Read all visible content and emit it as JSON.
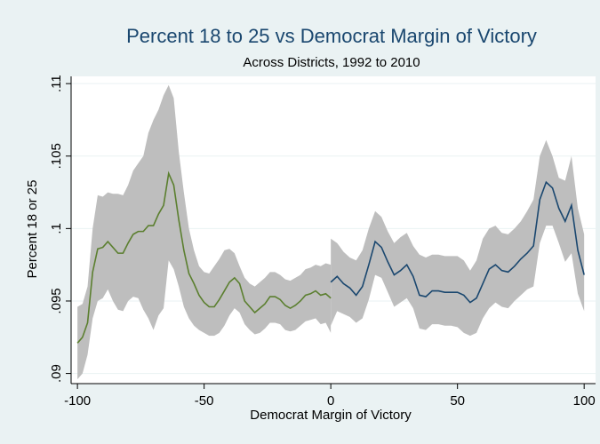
{
  "chart_data": {
    "type": "line",
    "title": "Percent 18 to 25 vs Democrat Margin of Victory",
    "subtitle": "Across Districts, 1992 to 2010",
    "x_label": "Democrat Margin of Victory",
    "y_label": "Percent 18 or 25",
    "xlim": [
      -102.5,
      104.5
    ],
    "ylim": [
      0.0893,
      0.1105
    ],
    "xticks": [
      -100,
      -50,
      0,
      50,
      100
    ],
    "yticks": [
      {
        "value": 0.09,
        "label": ".09"
      },
      {
        "value": 0.095,
        "label": ".095"
      },
      {
        "value": 0.1,
        "label": ".1"
      },
      {
        "value": 0.105,
        "label": ".105"
      },
      {
        "value": 0.11,
        "label": ".11"
      }
    ],
    "grid": true,
    "band_color": "#bebebe",
    "series": [
      {
        "color": "#5b7f2f",
        "x": [
          -100,
          -98,
          -96,
          -94,
          -92,
          -90,
          -88,
          -86,
          -84,
          -82,
          -80,
          -78,
          -76,
          -74,
          -72,
          -70,
          -68,
          -66,
          -64,
          -62,
          -60,
          -58,
          -56,
          -54,
          -52,
          -50,
          -48,
          -46,
          -44,
          -42,
          -40,
          -38,
          -36,
          -34,
          -32,
          -30,
          -28,
          -26,
          -24,
          -22,
          -20,
          -18,
          -16,
          -14,
          -12,
          -10,
          -8,
          -6,
          -4,
          -2,
          0
        ],
        "values": [
          0.0921,
          0.0925,
          0.0935,
          0.097,
          0.0986,
          0.0987,
          0.0991,
          0.0987,
          0.0983,
          0.0983,
          0.099,
          0.0996,
          0.0998,
          0.0998,
          0.1002,
          0.1002,
          0.101,
          0.1016,
          0.1038,
          0.103,
          0.1006,
          0.0985,
          0.0969,
          0.0962,
          0.0954,
          0.0949,
          0.0946,
          0.0946,
          0.0951,
          0.0957,
          0.0963,
          0.0966,
          0.0962,
          0.095,
          0.0946,
          0.0942,
          0.0945,
          0.0948,
          0.0953,
          0.0953,
          0.0951,
          0.0947,
          0.0945,
          0.0947,
          0.095,
          0.0954,
          0.0955,
          0.0957,
          0.0954,
          0.0955,
          0.0952
        ],
        "upper": [
          0.0946,
          0.0948,
          0.096,
          0.1,
          0.1023,
          0.1022,
          0.1025,
          0.1024,
          0.1024,
          0.1023,
          0.103,
          0.104,
          0.1045,
          0.105,
          0.1066,
          0.1075,
          0.1082,
          0.1092,
          0.1099,
          0.109,
          0.1053,
          0.1025,
          0.1,
          0.0985,
          0.0974,
          0.097,
          0.0969,
          0.0974,
          0.0979,
          0.0985,
          0.0986,
          0.0983,
          0.0974,
          0.0966,
          0.0962,
          0.096,
          0.0963,
          0.0966,
          0.097,
          0.097,
          0.0968,
          0.0965,
          0.0964,
          0.0966,
          0.0968,
          0.0972,
          0.0973,
          0.0975,
          0.0974,
          0.0976,
          0.0975
        ],
        "lower": [
          0.0896,
          0.09,
          0.0913,
          0.0938,
          0.095,
          0.0952,
          0.0958,
          0.095,
          0.0944,
          0.0943,
          0.095,
          0.0953,
          0.0952,
          0.0944,
          0.0938,
          0.093,
          0.094,
          0.0945,
          0.0978,
          0.0972,
          0.096,
          0.0946,
          0.0938,
          0.0933,
          0.093,
          0.0928,
          0.0926,
          0.0926,
          0.0928,
          0.0933,
          0.094,
          0.0945,
          0.0942,
          0.0934,
          0.093,
          0.0927,
          0.0928,
          0.0931,
          0.0935,
          0.0935,
          0.0934,
          0.093,
          0.0929,
          0.093,
          0.0933,
          0.0936,
          0.0937,
          0.0938,
          0.0934,
          0.0935,
          0.0928
        ]
      },
      {
        "color": "#1a476f",
        "x": [
          0,
          2.5,
          5,
          7.5,
          10,
          12.5,
          15,
          17.5,
          20,
          22.5,
          25,
          27.5,
          30,
          32.5,
          35,
          37.5,
          40,
          42.5,
          45,
          47.5,
          50,
          52.5,
          55,
          57.5,
          60,
          62.5,
          65,
          67.5,
          70,
          72.5,
          75,
          77.5,
          80,
          82.5,
          85,
          87.5,
          90,
          92.5,
          95,
          97.5,
          100
        ],
        "values": [
          0.0963,
          0.0967,
          0.0962,
          0.0959,
          0.0954,
          0.096,
          0.0975,
          0.0991,
          0.0987,
          0.0977,
          0.0968,
          0.0971,
          0.0975,
          0.0967,
          0.0954,
          0.0953,
          0.0957,
          0.0957,
          0.0956,
          0.0956,
          0.0956,
          0.0954,
          0.0949,
          0.0952,
          0.0962,
          0.0972,
          0.0975,
          0.0971,
          0.097,
          0.0974,
          0.0979,
          0.0983,
          0.0988,
          0.102,
          0.1032,
          0.1028,
          0.1014,
          0.1005,
          0.1016,
          0.0985,
          0.0968
        ],
        "upper": [
          0.0993,
          0.099,
          0.0984,
          0.098,
          0.0978,
          0.0985,
          0.1,
          0.1012,
          0.1008,
          0.0998,
          0.099,
          0.0994,
          0.0997,
          0.0988,
          0.0982,
          0.098,
          0.0982,
          0.0982,
          0.0981,
          0.0981,
          0.0981,
          0.0978,
          0.0971,
          0.0978,
          0.0993,
          0.1,
          0.1002,
          0.0997,
          0.0996,
          0.1,
          0.1005,
          0.1012,
          0.102,
          0.105,
          0.1061,
          0.105,
          0.1035,
          0.1033,
          0.105,
          0.1014,
          0.0996
        ],
        "lower": [
          0.0933,
          0.0943,
          0.0941,
          0.0939,
          0.0935,
          0.0938,
          0.0951,
          0.0968,
          0.0966,
          0.0956,
          0.0946,
          0.0949,
          0.0952,
          0.0945,
          0.0931,
          0.093,
          0.0934,
          0.0934,
          0.0933,
          0.0933,
          0.0932,
          0.0928,
          0.0926,
          0.0928,
          0.0938,
          0.0945,
          0.0949,
          0.0946,
          0.0945,
          0.095,
          0.0954,
          0.0958,
          0.096,
          0.099,
          0.1002,
          0.1002,
          0.099,
          0.0977,
          0.0983,
          0.0955,
          0.0943
        ]
      }
    ]
  }
}
